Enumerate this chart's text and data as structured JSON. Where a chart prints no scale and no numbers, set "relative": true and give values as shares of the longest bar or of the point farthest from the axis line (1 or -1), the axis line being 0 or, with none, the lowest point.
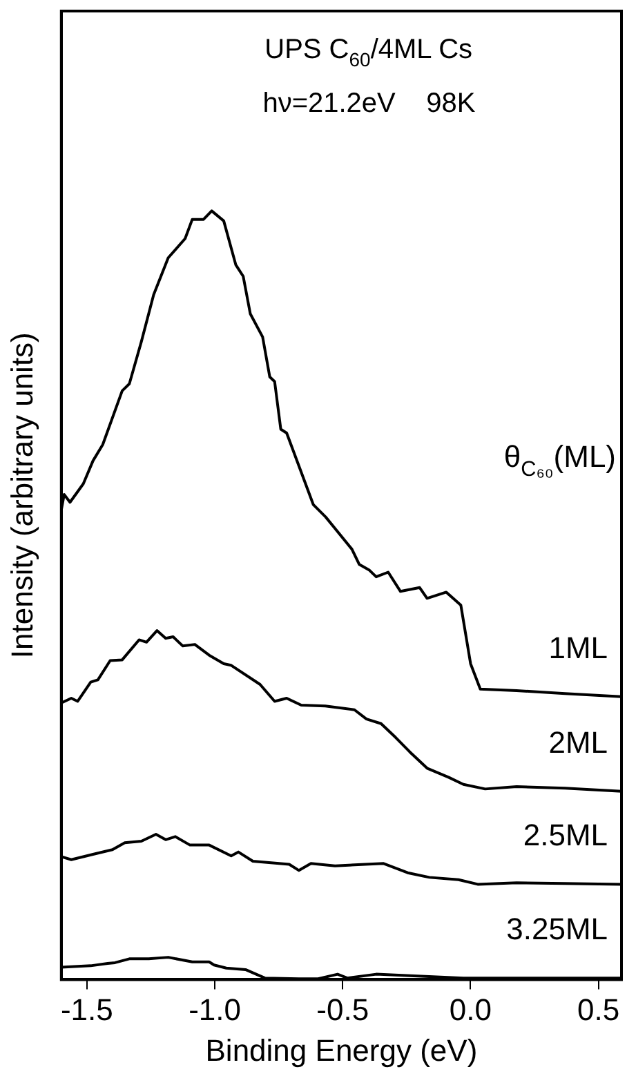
{
  "chart_data": {
    "type": "line",
    "title": "UPS C$_{60}$/4ML Cs",
    "subtitle": "hν=21.2eV    98K",
    "xlabel": "Binding Energy (eV)",
    "ylabel": "Intensity (arbitrary units)",
    "legend_title": "θ$_{C₆₀}$(ML)",
    "relative": true,
    "xlim": [
      -1.6,
      0.59
    ],
    "xticks": [
      {
        "value": -1.5,
        "label": "-1.5"
      },
      {
        "value": -1.0,
        "label": "-1.0"
      },
      {
        "value": -0.5,
        "label": "-0.5"
      },
      {
        "value": 0.0,
        "label": "0.0"
      },
      {
        "value": 0.5,
        "label": "0.5"
      }
    ],
    "grid": false,
    "legend": false,
    "marker": "none",
    "line_style": "solid",
    "series": [
      {
        "name": "1ML",
        "color": "#000000",
        "x": [
          -1.6,
          -1.589,
          -1.566,
          -1.514,
          -1.476,
          -1.438,
          -1.362,
          -1.334,
          -1.287,
          -1.239,
          -1.182,
          -1.116,
          -1.088,
          -1.044,
          -1.012,
          -0.965,
          -0.918,
          -0.889,
          -0.861,
          -0.813,
          -0.785,
          -0.766,
          -0.742,
          -0.719,
          -0.615,
          -0.567,
          -0.464,
          -0.435,
          -0.397,
          -0.369,
          -0.322,
          -0.274,
          -0.199,
          -0.17,
          -0.095,
          -0.038,
          0.0,
          0.038,
          0.18,
          0.369,
          0.59
        ],
        "values": [
          0.611,
          0.631,
          0.621,
          0.645,
          0.675,
          0.696,
          0.766,
          0.775,
          0.83,
          0.891,
          0.939,
          0.964,
          0.989,
          0.989,
          1.0,
          0.987,
          0.93,
          0.915,
          0.866,
          0.836,
          0.784,
          0.778,
          0.716,
          0.711,
          0.618,
          0.602,
          0.56,
          0.54,
          0.533,
          0.524,
          0.53,
          0.505,
          0.51,
          0.496,
          0.504,
          0.487,
          0.411,
          0.378,
          0.376,
          0.372,
          0.368
        ]
      },
      {
        "name": "2ML",
        "color": "#000000",
        "x": [
          -1.6,
          -1.561,
          -1.536,
          -1.485,
          -1.457,
          -1.409,
          -1.362,
          -1.296,
          -1.267,
          -1.226,
          -1.192,
          -1.163,
          -1.125,
          -1.078,
          -1.022,
          -0.965,
          -0.937,
          -0.823,
          -0.766,
          -0.719,
          -0.662,
          -0.568,
          -0.454,
          -0.407,
          -0.35,
          -0.293,
          -0.237,
          -0.17,
          -0.085,
          -0.028,
          0.057,
          0.18,
          0.369,
          0.59
        ],
        "values": [
          0.36,
          0.366,
          0.362,
          0.387,
          0.39,
          0.415,
          0.416,
          0.442,
          0.439,
          0.454,
          0.444,
          0.446,
          0.434,
          0.436,
          0.422,
          0.411,
          0.409,
          0.384,
          0.362,
          0.366,
          0.357,
          0.356,
          0.351,
          0.339,
          0.333,
          0.315,
          0.296,
          0.275,
          0.263,
          0.254,
          0.248,
          0.251,
          0.249,
          0.245
        ]
      },
      {
        "name": "2.5ML",
        "color": "#000000",
        "x": [
          -1.6,
          -1.561,
          -1.476,
          -1.4,
          -1.352,
          -1.287,
          -1.23,
          -1.192,
          -1.154,
          -1.097,
          -1.022,
          -0.936,
          -0.908,
          -0.851,
          -0.709,
          -0.671,
          -0.624,
          -0.53,
          -0.34,
          -0.246,
          -0.161,
          -0.047,
          0.028,
          0.18,
          0.369,
          0.59
        ],
        "values": [
          0.16,
          0.156,
          0.163,
          0.169,
          0.178,
          0.18,
          0.189,
          0.182,
          0.186,
          0.175,
          0.175,
          0.161,
          0.166,
          0.154,
          0.15,
          0.142,
          0.151,
          0.148,
          0.151,
          0.139,
          0.133,
          0.13,
          0.124,
          0.126,
          0.125,
          0.124
        ]
      },
      {
        "name": "3.25ML",
        "color": "#000000",
        "x": [
          -1.6,
          -1.485,
          -1.419,
          -1.39,
          -1.334,
          -1.258,
          -1.182,
          -1.088,
          -1.022,
          -1.003,
          -0.955,
          -0.88,
          -0.804,
          -0.671,
          -0.596,
          -0.52,
          -0.482,
          -0.369,
          -0.237,
          -0.028,
          0.161,
          0.369,
          0.59
        ],
        "values": [
          0.016,
          0.018,
          0.021,
          0.022,
          0.027,
          0.027,
          0.029,
          0.023,
          0.023,
          0.019,
          0.015,
          0.013,
          0.002,
          0.001,
          0.001,
          0.007,
          0.002,
          0.007,
          0.005,
          0.002,
          0.002,
          0.002,
          0.002
        ]
      }
    ]
  }
}
